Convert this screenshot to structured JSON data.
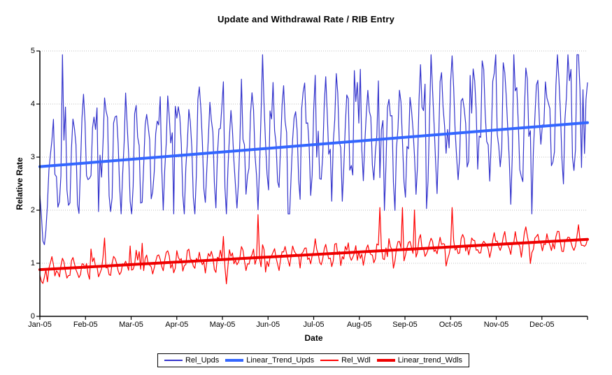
{
  "chart_data": {
    "type": "line",
    "title": "Update and Withdrawal Rate / RIB Entry",
    "xlabel": "Date",
    "ylabel": "Relative Rate",
    "ylim": [
      0,
      5
    ],
    "yticks": [
      0,
      1,
      2,
      3,
      4,
      5
    ],
    "x_categories": [
      "Jan-05",
      "Feb-05",
      "Mar-05",
      "Apr-05",
      "May-05",
      "Jun-05",
      "Jul-05",
      "Aug-05",
      "Sep-05",
      "Oct-05",
      "Nov-05",
      "Dec-05"
    ],
    "x_is_daily": true,
    "n_points": 365,
    "grid": "horizontal-dotted",
    "grid_color": "#bfbfbf",
    "axis_color": "#000000",
    "legend_position": "bottom",
    "series": [
      {
        "name": "Rel_Upds",
        "kind": "noisy-line",
        "color": "#3333cc",
        "width": 1.2,
        "observed_min": 1.35,
        "observed_max": 4.93,
        "monthly_means": [
          2.82,
          2.9,
          2.97,
          3.05,
          3.12,
          3.2,
          3.27,
          3.35,
          3.42,
          3.5,
          3.57,
          3.65
        ],
        "gen": {
          "n": 365,
          "seed": 20050101,
          "start": 2.82,
          "end": 3.65,
          "weekly": [
            0.55,
            0.95,
            0.6,
            0.1,
            -0.5,
            -0.95,
            -0.3
          ],
          "noise": 0.38,
          "spike_prob": 0.045,
          "spike_min": 0.6,
          "spike_max": 1.4,
          "mid_boost": false,
          "dip_prob": 0.05,
          "dip_min": 0.5,
          "dip_max": 1.0,
          "clamp": [
            1.93,
            4.93
          ],
          "intro": [
            2.28,
            1.9,
            1.42,
            1.35,
            1.62,
            2.1,
            2.75
          ]
        }
      },
      {
        "name": "Linear_Trend_Upds",
        "kind": "trend-line",
        "color": "#3366ff",
        "width": 4,
        "points": [
          [
            0,
            2.82
          ],
          [
            364,
            3.65
          ]
        ]
      },
      {
        "name": "Rel_Wdl",
        "kind": "noisy-line",
        "color": "#ff0000",
        "width": 1.2,
        "observed_min": 0.6,
        "observed_max": 2.05,
        "monthly_means": [
          0.88,
          0.93,
          0.98,
          1.03,
          1.09,
          1.14,
          1.19,
          1.24,
          1.29,
          1.35,
          1.4,
          1.45
        ],
        "gen": {
          "n": 365,
          "seed": 20051231,
          "start": 0.88,
          "end": 1.45,
          "weekly": [
            0.1,
            0.17,
            0.07,
            -0.03,
            -0.12,
            -0.16,
            -0.05
          ],
          "noise": 0.1,
          "spike_prob": 0.035,
          "spike_min": 0.3,
          "spike_max": 0.7,
          "mid_boost": true,
          "dip_prob": 0.02,
          "dip_min": 0.15,
          "dip_max": 0.3,
          "clamp": [
            0.6,
            2.05
          ],
          "intro": [
            0.78,
            0.66,
            0.62,
            0.74,
            0.88
          ]
        }
      },
      {
        "name": "Linear_trend_Wdls",
        "kind": "trend-line",
        "color": "#ee0000",
        "width": 4,
        "points": [
          [
            0,
            0.88
          ],
          [
            364,
            1.45
          ]
        ]
      }
    ]
  }
}
